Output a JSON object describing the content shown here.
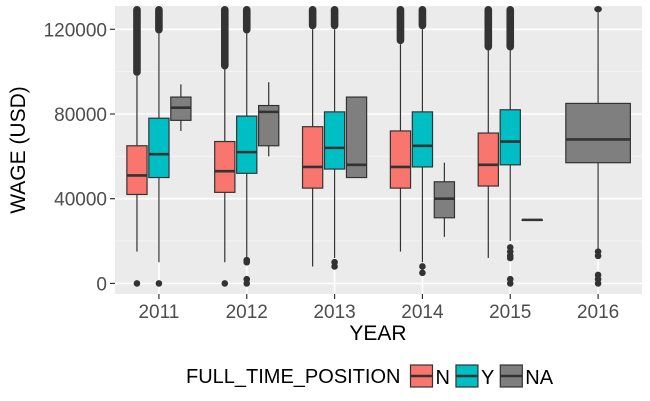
{
  "chart_data": {
    "type": "boxplot",
    "title": "",
    "xlabel": "YEAR",
    "ylabel": "WAGE (USD)",
    "categories": [
      "2011",
      "2012",
      "2013",
      "2014",
      "2015",
      "2016"
    ],
    "ylim": [
      -5000,
      131000
    ],
    "yticks": [
      0,
      40000,
      80000,
      120000
    ],
    "ytick_labels": [
      "0",
      "40000",
      "80000",
      "120000"
    ],
    "grid": true,
    "legend": {
      "title": "FULL_TIME_POSITION",
      "position": "bottom",
      "entries": [
        "N",
        "Y",
        "NA"
      ]
    },
    "series": [
      {
        "name": "N",
        "color": "#f8766d",
        "boxes": [
          {
            "category": "2011",
            "whisker_low": 15000,
            "q1": 42000,
            "median": 51000,
            "q3": 65000,
            "whisker_high": 98000,
            "outliers_low": [
              0
            ],
            "outliers_high_from": 98000
          },
          {
            "category": "2012",
            "whisker_low": 10000,
            "q1": 43000,
            "median": 53000,
            "q3": 67000,
            "whisker_high": 101000,
            "outliers_low": [
              0
            ],
            "outliers_high_from": 101000
          },
          {
            "category": "2013",
            "whisker_low": 8000,
            "q1": 45000,
            "median": 55000,
            "q3": 74000,
            "whisker_high": 120000,
            "outliers_low": [],
            "outliers_high_from": 120000
          },
          {
            "category": "2014",
            "whisker_low": 15000,
            "q1": 45000,
            "median": 55000,
            "q3": 72000,
            "whisker_high": 113000,
            "outliers_low": [],
            "outliers_high_from": 113000
          },
          {
            "category": "2015",
            "whisker_low": 12000,
            "q1": 46000,
            "median": 56000,
            "q3": 71000,
            "whisker_high": 110000,
            "outliers_low": [],
            "outliers_high_from": 110000
          }
        ]
      },
      {
        "name": "Y",
        "color": "#00bfc4",
        "boxes": [
          {
            "category": "2011",
            "whisker_low": 10000,
            "q1": 50000,
            "median": 61000,
            "q3": 78000,
            "whisker_high": 118000,
            "outliers_low": [
              0
            ],
            "outliers_high_from": 118000
          },
          {
            "category": "2012",
            "whisker_low": 12000,
            "q1": 52000,
            "median": 62000,
            "q3": 79000,
            "whisker_high": 118000,
            "outliers_low": [
              11000,
              10000,
              2000,
              0
            ],
            "outliers_high_from": 118000
          },
          {
            "category": "2013",
            "whisker_low": 12000,
            "q1": 54000,
            "median": 64000,
            "q3": 81000,
            "whisker_high": 120000,
            "outliers_low": [
              10000,
              8000
            ],
            "outliers_high_from": 120000
          },
          {
            "category": "2014",
            "whisker_low": 10000,
            "q1": 55000,
            "median": 65000,
            "q3": 81000,
            "whisker_high": 120000,
            "outliers_low": [
              8000,
              5000
            ],
            "outliers_high_from": 120000
          },
          {
            "category": "2015",
            "whisker_low": 20000,
            "q1": 56000,
            "median": 67000,
            "q3": 82000,
            "whisker_high": 110000,
            "outliers_low": [
              17000,
              15000,
              13000,
              12000,
              2000,
              0
            ],
            "outliers_high_from": 110000
          }
        ]
      },
      {
        "name": "NA",
        "color": "#7f7f7f",
        "boxes": [
          {
            "category": "2011",
            "whisker_low": 72000,
            "q1": 77000,
            "median": 83000,
            "q3": 88000,
            "whisker_high": 94000,
            "outliers_low": [],
            "outliers_high_from": null
          },
          {
            "category": "2012",
            "whisker_low": 60000,
            "q1": 65000,
            "median": 81000,
            "q3": 84000,
            "whisker_high": 95000,
            "outliers_low": [],
            "outliers_high_from": null
          },
          {
            "category": "2013",
            "whisker_low": 50000,
            "q1": 50000,
            "median": 56000,
            "q3": 88000,
            "whisker_high": 88000,
            "outliers_low": [],
            "outliers_high_from": null
          },
          {
            "category": "2014",
            "whisker_low": 22000,
            "q1": 31000,
            "median": 40000,
            "q3": 48000,
            "whisker_high": 57000,
            "outliers_low": [],
            "outliers_high_from": null
          },
          {
            "category": "2015",
            "whisker_low": 30000,
            "q1": 30000,
            "median": 30000,
            "q3": 30000,
            "whisker_high": 30000,
            "outliers_low": [],
            "outliers_high_from": null
          },
          {
            "category": "2016",
            "whisker_low": 16000,
            "q1": 57000,
            "median": 68000,
            "q3": 85000,
            "whisker_high": 128000,
            "outliers_low": [
              15000,
              13000,
              4000,
              2000,
              0
            ],
            "outliers_high_from": 128000
          }
        ]
      }
    ]
  }
}
